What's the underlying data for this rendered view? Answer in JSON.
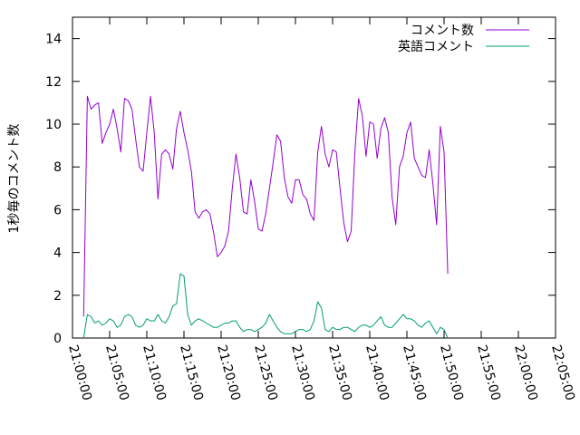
{
  "chart_data": {
    "type": "line",
    "title": "",
    "xlabel": "",
    "ylabel": "1秒毎のコメント数",
    "xlim": [
      "21:00:00",
      "22:05:00"
    ],
    "ylim": [
      0,
      15
    ],
    "xticks": [
      "21:00:00",
      "21:05:00",
      "21:10:00",
      "21:15:00",
      "21:20:00",
      "21:25:00",
      "21:30:00",
      "21:35:00",
      "21:40:00",
      "21:45:00",
      "21:50:00",
      "21:55:00",
      "22:00:00",
      "22:05:00"
    ],
    "yticks": [
      0,
      2,
      4,
      6,
      8,
      10,
      12,
      14
    ],
    "grid": false,
    "legend_position": "top-right",
    "series": [
      {
        "name": "コメント数",
        "color": "#9400d3",
        "points": [
          [
            "21:01:30",
            1.0
          ],
          [
            "21:02:00",
            11.3
          ],
          [
            "21:02:30",
            10.7
          ],
          [
            "21:03:00",
            10.9
          ],
          [
            "21:03:30",
            11.0
          ],
          [
            "21:04:00",
            9.1
          ],
          [
            "21:04:30",
            9.6
          ],
          [
            "21:05:00",
            10.0
          ],
          [
            "21:05:30",
            10.7
          ],
          [
            "21:06:00",
            9.8
          ],
          [
            "21:06:30",
            8.7
          ],
          [
            "21:07:00",
            11.2
          ],
          [
            "21:07:30",
            11.1
          ],
          [
            "21:08:00",
            10.7
          ],
          [
            "21:08:30",
            9.3
          ],
          [
            "21:09:00",
            8.0
          ],
          [
            "21:09:30",
            7.8
          ],
          [
            "21:10:00",
            9.6
          ],
          [
            "21:10:30",
            11.3
          ],
          [
            "21:11:00",
            9.6
          ],
          [
            "21:11:30",
            6.5
          ],
          [
            "21:12:00",
            8.6
          ],
          [
            "21:12:30",
            8.8
          ],
          [
            "21:13:00",
            8.6
          ],
          [
            "21:13:30",
            7.9
          ],
          [
            "21:14:00",
            9.8
          ],
          [
            "21:14:30",
            10.6
          ],
          [
            "21:15:00",
            9.6
          ],
          [
            "21:15:30",
            8.8
          ],
          [
            "21:16:00",
            7.8
          ],
          [
            "21:16:30",
            5.9
          ],
          [
            "21:17:00",
            5.6
          ],
          [
            "21:17:30",
            5.9
          ],
          [
            "21:18:00",
            6.0
          ],
          [
            "21:18:30",
            5.8
          ],
          [
            "21:19:00",
            4.9
          ],
          [
            "21:19:30",
            3.8
          ],
          [
            "21:20:00",
            4.0
          ],
          [
            "21:20:30",
            4.3
          ],
          [
            "21:21:00",
            5.0
          ],
          [
            "21:21:30",
            7.0
          ],
          [
            "21:22:00",
            8.6
          ],
          [
            "21:22:30",
            7.5
          ],
          [
            "21:23:00",
            5.9
          ],
          [
            "21:23:30",
            5.8
          ],
          [
            "21:24:00",
            7.4
          ],
          [
            "21:24:30",
            6.4
          ],
          [
            "21:25:00",
            5.1
          ],
          [
            "21:25:30",
            5.0
          ],
          [
            "21:26:00",
            5.8
          ],
          [
            "21:26:30",
            7.0
          ],
          [
            "21:27:00",
            8.2
          ],
          [
            "21:27:30",
            9.5
          ],
          [
            "21:28:00",
            9.2
          ],
          [
            "21:28:30",
            7.5
          ],
          [
            "21:29:00",
            6.6
          ],
          [
            "21:29:30",
            6.3
          ],
          [
            "21:30:00",
            7.4
          ],
          [
            "21:30:30",
            7.4
          ],
          [
            "21:31:00",
            6.7
          ],
          [
            "21:31:30",
            6.5
          ],
          [
            "21:32:00",
            5.8
          ],
          [
            "21:32:30",
            5.5
          ],
          [
            "21:33:00",
            8.7
          ],
          [
            "21:33:30",
            9.9
          ],
          [
            "21:34:00",
            8.6
          ],
          [
            "21:34:30",
            8.0
          ],
          [
            "21:35:00",
            8.8
          ],
          [
            "21:35:30",
            8.7
          ],
          [
            "21:36:00",
            7.0
          ],
          [
            "21:36:30",
            5.4
          ],
          [
            "21:37:00",
            4.5
          ],
          [
            "21:37:30",
            5.0
          ],
          [
            "21:38:00",
            8.7
          ],
          [
            "21:38:30",
            11.2
          ],
          [
            "21:39:00",
            10.4
          ],
          [
            "21:39:30",
            8.5
          ],
          [
            "21:40:00",
            10.1
          ],
          [
            "21:40:30",
            10.0
          ],
          [
            "21:41:00",
            8.4
          ],
          [
            "21:41:30",
            9.8
          ],
          [
            "21:42:00",
            10.3
          ],
          [
            "21:42:30",
            9.6
          ],
          [
            "21:43:00",
            6.6
          ],
          [
            "21:43:30",
            5.3
          ],
          [
            "21:44:00",
            8.0
          ],
          [
            "21:44:30",
            8.5
          ],
          [
            "21:45:00",
            9.6
          ],
          [
            "21:45:30",
            10.1
          ],
          [
            "21:46:00",
            8.4
          ],
          [
            "21:46:30",
            8.0
          ],
          [
            "21:47:00",
            7.6
          ],
          [
            "21:47:30",
            7.5
          ],
          [
            "21:48:00",
            8.8
          ],
          [
            "21:48:30",
            7.2
          ],
          [
            "21:49:00",
            5.3
          ],
          [
            "21:49:30",
            9.9
          ],
          [
            "21:50:00",
            8.7
          ],
          [
            "21:50:30",
            3.0
          ]
        ]
      },
      {
        "name": "英語コメント",
        "color": "#009e73",
        "points": [
          [
            "21:01:30",
            0.0
          ],
          [
            "21:02:00",
            1.1
          ],
          [
            "21:02:30",
            1.0
          ],
          [
            "21:03:00",
            0.7
          ],
          [
            "21:03:30",
            0.8
          ],
          [
            "21:04:00",
            0.6
          ],
          [
            "21:04:30",
            0.7
          ],
          [
            "21:05:00",
            0.9
          ],
          [
            "21:05:30",
            0.8
          ],
          [
            "21:06:00",
            0.5
          ],
          [
            "21:06:30",
            0.6
          ],
          [
            "21:07:00",
            1.0
          ],
          [
            "21:07:30",
            1.1
          ],
          [
            "21:08:00",
            1.0
          ],
          [
            "21:08:30",
            0.6
          ],
          [
            "21:09:00",
            0.5
          ],
          [
            "21:09:30",
            0.6
          ],
          [
            "21:10:00",
            0.9
          ],
          [
            "21:10:30",
            0.8
          ],
          [
            "21:11:00",
            0.8
          ],
          [
            "21:11:30",
            1.1
          ],
          [
            "21:12:00",
            0.8
          ],
          [
            "21:12:30",
            0.7
          ],
          [
            "21:13:00",
            1.0
          ],
          [
            "21:13:30",
            1.5
          ],
          [
            "21:14:00",
            1.6
          ],
          [
            "21:14:30",
            3.0
          ],
          [
            "21:15:00",
            2.9
          ],
          [
            "21:15:30",
            1.1
          ],
          [
            "21:16:00",
            0.6
          ],
          [
            "21:16:30",
            0.8
          ],
          [
            "21:17:00",
            0.9
          ],
          [
            "21:17:30",
            0.8
          ],
          [
            "21:18:00",
            0.7
          ],
          [
            "21:18:30",
            0.6
          ],
          [
            "21:19:00",
            0.5
          ],
          [
            "21:19:30",
            0.5
          ],
          [
            "21:20:00",
            0.6
          ],
          [
            "21:20:30",
            0.7
          ],
          [
            "21:21:00",
            0.7
          ],
          [
            "21:21:30",
            0.8
          ],
          [
            "21:22:00",
            0.8
          ],
          [
            "21:22:30",
            0.5
          ],
          [
            "21:23:00",
            0.3
          ],
          [
            "21:23:30",
            0.4
          ],
          [
            "21:24:00",
            0.4
          ],
          [
            "21:24:30",
            0.3
          ],
          [
            "21:25:00",
            0.4
          ],
          [
            "21:25:30",
            0.5
          ],
          [
            "21:26:00",
            0.7
          ],
          [
            "21:26:30",
            1.1
          ],
          [
            "21:27:00",
            0.8
          ],
          [
            "21:27:30",
            0.5
          ],
          [
            "21:28:00",
            0.3
          ],
          [
            "21:28:30",
            0.2
          ],
          [
            "21:29:00",
            0.2
          ],
          [
            "21:29:30",
            0.2
          ],
          [
            "21:30:00",
            0.3
          ],
          [
            "21:30:30",
            0.4
          ],
          [
            "21:31:00",
            0.4
          ],
          [
            "21:31:30",
            0.3
          ],
          [
            "21:32:00",
            0.4
          ],
          [
            "21:32:30",
            0.8
          ],
          [
            "21:33:00",
            1.7
          ],
          [
            "21:33:30",
            1.4
          ],
          [
            "21:34:00",
            0.4
          ],
          [
            "21:34:30",
            0.3
          ],
          [
            "21:35:00",
            0.5
          ],
          [
            "21:35:30",
            0.4
          ],
          [
            "21:36:00",
            0.4
          ],
          [
            "21:36:30",
            0.5
          ],
          [
            "21:37:00",
            0.5
          ],
          [
            "21:37:30",
            0.4
          ],
          [
            "21:38:00",
            0.3
          ],
          [
            "21:38:30",
            0.5
          ],
          [
            "21:39:00",
            0.6
          ],
          [
            "21:39:30",
            0.6
          ],
          [
            "21:40:00",
            0.5
          ],
          [
            "21:40:30",
            0.6
          ],
          [
            "21:41:00",
            0.8
          ],
          [
            "21:41:30",
            1.0
          ],
          [
            "21:42:00",
            0.6
          ],
          [
            "21:42:30",
            0.5
          ],
          [
            "21:43:00",
            0.5
          ],
          [
            "21:43:30",
            0.7
          ],
          [
            "21:44:00",
            0.9
          ],
          [
            "21:44:30",
            1.1
          ],
          [
            "21:45:00",
            0.9
          ],
          [
            "21:45:30",
            0.9
          ],
          [
            "21:46:00",
            0.8
          ],
          [
            "21:46:30",
            0.6
          ],
          [
            "21:47:00",
            0.5
          ],
          [
            "21:47:30",
            0.7
          ],
          [
            "21:48:00",
            0.8
          ],
          [
            "21:48:30",
            0.5
          ],
          [
            "21:49:00",
            0.2
          ],
          [
            "21:49:30",
            0.5
          ],
          [
            "21:50:00",
            0.4
          ],
          [
            "21:50:30",
            0.0
          ]
        ]
      }
    ]
  }
}
